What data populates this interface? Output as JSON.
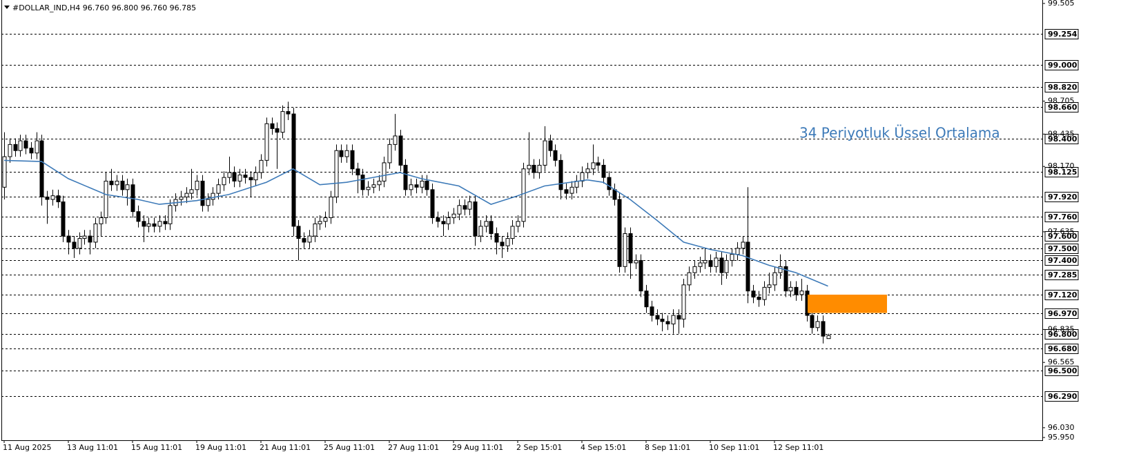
{
  "chart_data": {
    "type": "candlestick",
    "title": "#DOLLAR_IND,H4  96.760 96.800 96.760 96.785",
    "annotation": "34 Periyotluk Üssel Ortalama",
    "categories": [
      "11 Aug 2025",
      null,
      null,
      null,
      null,
      null,
      null,
      null,
      null,
      null,
      null,
      null,
      "13 Aug 11:01",
      null,
      null,
      null,
      null,
      null,
      null,
      null,
      null,
      null,
      null,
      null,
      "15 Aug 11:01",
      null,
      null,
      null,
      null,
      null,
      null,
      null,
      null,
      null,
      null,
      null,
      "19 Aug 11:01",
      null,
      null,
      null,
      null,
      null,
      null,
      null,
      null,
      null,
      null,
      null,
      "21 Aug 11:01",
      null,
      null,
      null,
      null,
      null,
      null,
      null,
      null,
      null,
      null,
      null,
      "25 Aug 11:01",
      null,
      null,
      null,
      null,
      null,
      null,
      null,
      null,
      null,
      null,
      null,
      "27 Aug 11:01",
      null,
      null,
      null,
      null,
      null,
      null,
      null,
      null,
      null,
      null,
      null,
      "29 Aug 11:01",
      null,
      null,
      null,
      null,
      null,
      null,
      null,
      null,
      null,
      null,
      null,
      "2 Sep 15:01",
      null,
      null,
      null,
      null,
      null,
      null,
      null,
      null,
      null,
      null,
      null,
      "4 Sep 15:01",
      null,
      null,
      null,
      null,
      null,
      null,
      null,
      null,
      null,
      null,
      null,
      "8 Sep 11:01",
      null,
      null,
      null,
      null,
      null,
      null,
      null,
      null,
      null,
      null,
      null,
      "10 Sep 11:01",
      null,
      null,
      null,
      null,
      null,
      null,
      null,
      null,
      null,
      null,
      null,
      "12 Sep 11:01",
      null,
      null,
      null,
      null,
      null,
      null,
      null,
      null,
      null,
      null
    ],
    "open": [
      98.0,
      98.25,
      98.35,
      98.3,
      98.38,
      98.32,
      98.28,
      98.38,
      97.92,
      97.9,
      97.93,
      97.88,
      97.6,
      97.55,
      97.5,
      97.58,
      97.6,
      97.55,
      97.7,
      97.75,
      98.05,
      98.02,
      98.05,
      97.98,
      98.02,
      97.8,
      97.72,
      97.68,
      97.7,
      97.68,
      97.72,
      97.7,
      97.85,
      97.9,
      97.92,
      97.95,
      97.98,
      98.05,
      97.85,
      97.9,
      97.95,
      98.02,
      98.08,
      98.12,
      98.05,
      98.1,
      98.08,
      98.06,
      98.12,
      98.22,
      98.52,
      98.48,
      98.45,
      98.62,
      98.6,
      97.68,
      97.58,
      97.55,
      97.6,
      97.7,
      97.72,
      97.75,
      97.92,
      98.3,
      98.25,
      98.3,
      98.15,
      98.1,
      97.98,
      98.0,
      98.02,
      98.05,
      98.2,
      98.35,
      98.42,
      98.18,
      97.98,
      98.02,
      98.0,
      98.05,
      97.98,
      97.75,
      97.72,
      97.7,
      97.75,
      97.78,
      97.85,
      97.82,
      97.88,
      97.6,
      97.68,
      97.72,
      97.62,
      97.55,
      97.52,
      97.58,
      97.68,
      97.72,
      98.15,
      98.18,
      98.12,
      98.18,
      98.38,
      98.3,
      98.22,
      97.98,
      97.95,
      98.0,
      98.05,
      98.12,
      98.15,
      98.2,
      98.18,
      98.08,
      97.98,
      97.9,
      97.35,
      97.62,
      97.38,
      97.4,
      97.15,
      97.02,
      96.95,
      96.92,
      96.9,
      96.88,
      96.95,
      96.92,
      97.2,
      97.3,
      97.35,
      97.38,
      97.4,
      97.35,
      97.42,
      97.3,
      97.4,
      97.45,
      97.5,
      97.55,
      97.15,
      97.1,
      97.08,
      97.18,
      97.2,
      97.3,
      97.35,
      97.15,
      97.18,
      97.12,
      97.15,
      96.95,
      96.85,
      96.9,
      96.76
    ],
    "high": [
      98.45,
      98.4,
      98.4,
      98.43,
      98.43,
      98.37,
      98.45,
      98.43,
      97.97,
      97.98,
      97.98,
      97.93,
      97.65,
      97.6,
      97.63,
      97.65,
      97.65,
      97.75,
      97.8,
      98.12,
      98.15,
      98.1,
      98.1,
      98.07,
      98.07,
      97.85,
      97.77,
      97.75,
      97.75,
      97.77,
      97.77,
      97.9,
      97.95,
      97.97,
      98.0,
      98.15,
      98.1,
      98.1,
      97.95,
      98.0,
      98.07,
      98.13,
      98.25,
      98.17,
      98.15,
      98.15,
      98.13,
      98.17,
      98.27,
      98.57,
      98.57,
      98.53,
      98.67,
      98.7,
      98.65,
      97.73,
      97.63,
      97.65,
      97.75,
      97.77,
      97.8,
      97.97,
      98.35,
      98.35,
      98.35,
      98.35,
      98.2,
      98.15,
      98.05,
      98.07,
      98.1,
      98.25,
      98.4,
      98.6,
      98.47,
      98.23,
      98.07,
      98.07,
      98.1,
      98.1,
      98.03,
      97.8,
      97.77,
      97.8,
      97.83,
      97.9,
      97.9,
      97.93,
      97.93,
      97.73,
      97.77,
      97.77,
      97.67,
      97.6,
      97.63,
      97.73,
      97.77,
      98.2,
      98.45,
      98.23,
      98.23,
      98.5,
      98.43,
      98.35,
      98.27,
      98.03,
      98.05,
      98.1,
      98.17,
      98.2,
      98.35,
      98.25,
      98.23,
      98.13,
      98.03,
      97.95,
      97.67,
      97.67,
      97.45,
      97.45,
      97.2,
      97.07,
      97.0,
      96.97,
      96.95,
      97.0,
      97.0,
      97.25,
      97.35,
      97.4,
      97.43,
      97.5,
      97.45,
      97.47,
      97.47,
      97.45,
      97.5,
      97.55,
      97.6,
      98.0,
      97.2,
      97.15,
      97.23,
      97.3,
      97.35,
      97.45,
      97.4,
      97.23,
      97.23,
      97.25,
      97.2,
      97.0,
      96.95,
      96.95,
      96.8
    ],
    "low": [
      97.9,
      98.2,
      98.25,
      98.25,
      98.27,
      98.23,
      98.23,
      97.85,
      97.7,
      97.85,
      97.83,
      97.55,
      97.45,
      97.42,
      97.45,
      97.53,
      97.45,
      97.5,
      97.6,
      97.7,
      97.97,
      97.97,
      97.93,
      97.85,
      97.75,
      97.67,
      97.55,
      97.63,
      97.63,
      97.63,
      97.65,
      97.65,
      97.8,
      97.85,
      97.87,
      97.9,
      97.93,
      97.8,
      97.8,
      97.85,
      97.9,
      97.97,
      98.03,
      98.0,
      98.0,
      98.03,
      97.92,
      98.01,
      98.07,
      98.17,
      98.43,
      98.15,
      98.4,
      98.55,
      97.6,
      97.4,
      97.5,
      97.5,
      97.55,
      97.65,
      97.67,
      97.7,
      97.87,
      98.2,
      98.2,
      98.1,
      97.95,
      97.93,
      97.93,
      97.95,
      97.97,
      98.0,
      98.15,
      98.3,
      98.13,
      97.93,
      97.93,
      97.95,
      97.95,
      97.93,
      97.7,
      97.67,
      97.6,
      97.65,
      97.7,
      97.73,
      97.77,
      97.77,
      97.52,
      97.55,
      97.63,
      97.57,
      97.45,
      97.42,
      97.47,
      97.53,
      97.63,
      97.67,
      98.1,
      98.07,
      98.07,
      98.13,
      98.25,
      98.17,
      97.9,
      97.9,
      97.9,
      97.95,
      98.0,
      98.07,
      98.1,
      98.13,
      98.03,
      97.93,
      97.85,
      97.3,
      97.3,
      97.25,
      97.33,
      97.1,
      96.97,
      96.9,
      96.87,
      96.82,
      96.83,
      96.8,
      96.8,
      96.85,
      97.15,
      97.25,
      97.3,
      97.33,
      97.3,
      97.3,
      97.2,
      97.25,
      97.35,
      97.4,
      97.45,
      97.05,
      97.05,
      97.02,
      97.03,
      97.13,
      97.15,
      97.25,
      97.1,
      97.1,
      97.07,
      97.07,
      96.9,
      96.8,
      96.82,
      96.72,
      96.76
    ],
    "close": [
      98.25,
      98.35,
      98.3,
      98.38,
      98.32,
      98.28,
      98.38,
      97.92,
      97.9,
      97.93,
      97.88,
      97.6,
      97.55,
      97.5,
      97.58,
      97.6,
      97.55,
      97.7,
      97.75,
      98.05,
      98.02,
      98.05,
      97.98,
      98.02,
      97.8,
      97.72,
      97.68,
      97.7,
      97.68,
      97.72,
      97.7,
      97.85,
      97.9,
      97.92,
      97.95,
      97.98,
      98.05,
      97.85,
      97.9,
      97.95,
      98.02,
      98.08,
      98.12,
      98.05,
      98.1,
      98.08,
      98.06,
      98.12,
      98.22,
      98.52,
      98.48,
      98.45,
      98.62,
      98.6,
      97.68,
      97.58,
      97.55,
      97.6,
      97.7,
      97.72,
      97.75,
      97.92,
      98.3,
      98.25,
      98.3,
      98.15,
      98.1,
      97.98,
      98.0,
      98.02,
      98.05,
      98.2,
      98.35,
      98.42,
      98.18,
      97.98,
      98.02,
      98.0,
      98.05,
      97.98,
      97.75,
      97.72,
      97.7,
      97.75,
      97.78,
      97.85,
      97.82,
      97.88,
      97.6,
      97.68,
      97.72,
      97.62,
      97.55,
      97.52,
      97.58,
      97.68,
      97.72,
      98.15,
      98.18,
      98.12,
      98.18,
      98.38,
      98.3,
      98.22,
      97.98,
      97.95,
      98.0,
      98.05,
      98.12,
      98.15,
      98.2,
      98.18,
      98.08,
      97.98,
      97.9,
      97.35,
      97.62,
      97.38,
      97.4,
      97.15,
      97.02,
      96.95,
      96.92,
      96.9,
      96.88,
      96.95,
      96.92,
      97.2,
      97.3,
      97.35,
      97.38,
      97.4,
      97.35,
      97.42,
      97.3,
      97.4,
      97.45,
      97.5,
      97.55,
      97.15,
      97.1,
      97.08,
      97.18,
      97.2,
      97.3,
      97.35,
      97.15,
      97.18,
      97.12,
      97.15,
      96.95,
      96.85,
      96.9,
      96.78,
      96.785
    ],
    "up_color": "#ffffff",
    "down_color": "#000000",
    "ema": {
      "color": "#3d7ab8",
      "x": [
        0,
        7,
        12,
        19,
        25,
        29,
        36,
        42,
        49,
        54,
        59,
        64,
        69,
        74,
        78,
        85,
        91,
        96,
        101,
        109,
        112,
        117,
        122,
        127,
        132,
        138,
        143,
        148,
        154
      ],
      "values": [
        98.22,
        98.21,
        98.07,
        97.94,
        97.9,
        97.86,
        97.89,
        97.94,
        98.04,
        98.15,
        98.02,
        98.04,
        98.08,
        98.12,
        98.07,
        98.01,
        97.86,
        97.93,
        98.01,
        98.06,
        98.04,
        97.9,
        97.73,
        97.55,
        97.49,
        97.44,
        97.36,
        97.3,
        97.19
      ]
    },
    "zone": {
      "values": [
        96.97,
        97.12
      ],
      "color": "#ff8c00"
    },
    "levels": [
      99.254,
      {
        "value": 99.0,
        "label": "99.000"
      },
      {
        "value": 98.82,
        "label": "98.820"
      },
      {
        "value": 98.66,
        "label": "98.660"
      },
      {
        "value": 98.4,
        "label": "98.400"
      },
      98.125,
      {
        "value": 97.92,
        "label": "97.920"
      },
      {
        "value": 97.76,
        "label": "97.760"
      },
      {
        "value": 97.6,
        "label": "97.600"
      },
      {
        "value": 97.5,
        "label": "97.500"
      },
      {
        "value": 97.4,
        "label": "97.400"
      },
      97.285,
      {
        "value": 97.12,
        "label": "97.120"
      },
      {
        "value": 96.97,
        "label": "96.970"
      },
      {
        "value": 96.8,
        "label": "96.800"
      },
      {
        "value": 96.68,
        "label": "96.680"
      },
      {
        "value": 96.5,
        "label": "96.500"
      },
      {
        "value": 96.29,
        "label": "96.290"
      }
    ],
    "ylim": [
      95.95,
      99.505
    ],
    "yticks": [
      99.505,
      98.705,
      98.435,
      {
        "value": 98.17,
        "label": "98.170"
      },
      97.635,
      96.835,
      96.565,
      {
        "value": 96.03,
        "label": "96.030"
      },
      {
        "value": 95.95,
        "label": "95.950"
      }
    ]
  }
}
